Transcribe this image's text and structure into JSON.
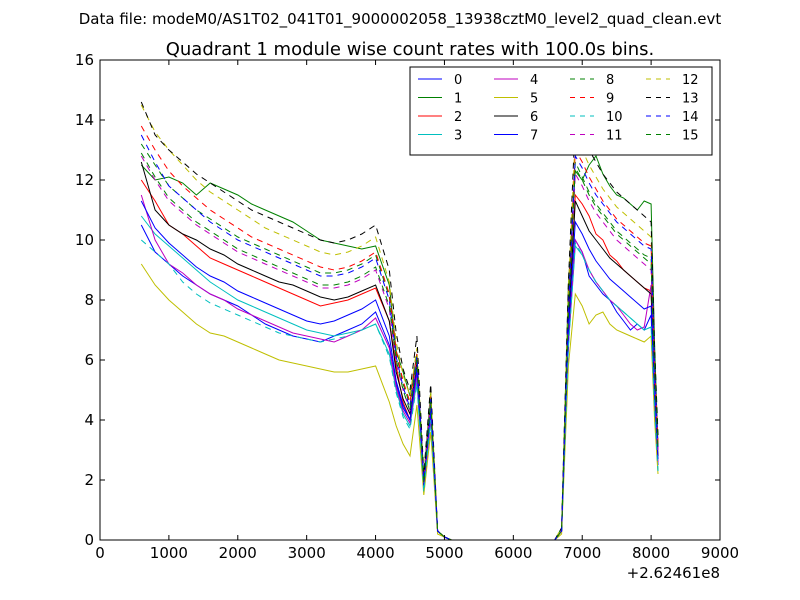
{
  "figure": {
    "suptitle": "Data file: modeM0/AS1T02_041T01_9000002058_13938cztM0_level2_quad_clean.evt"
  },
  "chart_data": {
    "type": "line",
    "title": "Quadrant 1 module wise count rates with 100.0s bins.",
    "xlabel": "",
    "ylabel": "",
    "x_offset_label": "+2.62461e8",
    "xlim": [
      0,
      9000
    ],
    "ylim": [
      0,
      16
    ],
    "xticks": [
      0,
      1000,
      2000,
      3000,
      4000,
      5000,
      6000,
      7000,
      8000,
      9000
    ],
    "yticks": [
      0,
      2,
      4,
      6,
      8,
      10,
      12,
      14,
      16
    ],
    "xtick_labels": [
      "0",
      "1000",
      "2000",
      "3000",
      "4000",
      "5000",
      "6000",
      "7000",
      "8000",
      "9000"
    ],
    "ytick_labels": [
      "0",
      "2",
      "4",
      "6",
      "8",
      "10",
      "12",
      "14",
      "16"
    ],
    "grid": false,
    "legend_placement": "upper right",
    "legend_columns": 4,
    "x": [
      600,
      800,
      1000,
      1200,
      1400,
      1600,
      1800,
      2000,
      2200,
      2400,
      2600,
      2800,
      3000,
      3200,
      3400,
      3600,
      3800,
      4000,
      4200,
      4300,
      4400,
      4500,
      4600,
      4700,
      4800,
      4900,
      5000,
      5100,
      5200,
      5400,
      5600,
      5800,
      6000,
      6200,
      6400,
      6600,
      6700,
      6800,
      6900,
      7000,
      7100,
      7200,
      7300,
      7400,
      7500,
      7600,
      7700,
      7800,
      7900,
      8000,
      8050,
      8100
    ],
    "series": [
      {
        "name": "0",
        "color": "#0000ff",
        "dash": "solid",
        "values": [
          10.5,
          9.6,
          9.2,
          8.8,
          8.5,
          8.2,
          8.0,
          7.8,
          7.5,
          7.2,
          7.0,
          6.8,
          6.7,
          6.6,
          6.8,
          7.0,
          7.2,
          7.6,
          6.5,
          5.2,
          4.4,
          4.0,
          5.6,
          1.8,
          4.2,
          0.3,
          0.1,
          0,
          0,
          0,
          0,
          0,
          0,
          0,
          0,
          0,
          0.3,
          6.5,
          10.0,
          9.6,
          8.8,
          8.5,
          8.2,
          8.0,
          7.6,
          7.3,
          7.0,
          7.2,
          7.0,
          7.5,
          4.5,
          2.5
        ]
      },
      {
        "name": "1",
        "color": "#008000",
        "dash": "solid",
        "values": [
          12.5,
          12.0,
          12.1,
          11.9,
          11.5,
          11.9,
          11.7,
          11.5,
          11.2,
          11.0,
          10.8,
          10.6,
          10.3,
          10.0,
          9.9,
          9.8,
          9.7,
          9.8,
          8.5,
          6.3,
          5.6,
          4.8,
          6.2,
          2.1,
          4.9,
          0.3,
          0.1,
          0,
          0,
          0,
          0,
          0,
          0,
          0,
          0,
          0,
          0.4,
          8.5,
          12.3,
          12.0,
          12.5,
          12.8,
          12.2,
          11.8,
          11.5,
          11.4,
          11.2,
          11.0,
          11.3,
          11.2,
          6.5,
          3.1
        ]
      },
      {
        "name": "2",
        "color": "#ff0000",
        "dash": "solid",
        "values": [
          12.0,
          11.3,
          10.5,
          10.2,
          9.8,
          9.4,
          9.2,
          9.0,
          8.8,
          8.6,
          8.4,
          8.2,
          8.0,
          7.8,
          7.9,
          8.0,
          8.2,
          8.4,
          7.3,
          5.8,
          4.6,
          4.0,
          5.8,
          1.9,
          4.5,
          0.3,
          0.1,
          0,
          0,
          0,
          0,
          0,
          0,
          0,
          0,
          0,
          0.3,
          7.3,
          11.5,
          11.2,
          10.8,
          10.2,
          10.0,
          9.5,
          9.3,
          9.0,
          8.8,
          8.6,
          8.4,
          8.3,
          5.2,
          3.0
        ]
      },
      {
        "name": "3",
        "color": "#00bfbf",
        "dash": "solid",
        "values": [
          10.8,
          10.2,
          9.8,
          9.4,
          9.0,
          8.6,
          8.3,
          8.0,
          7.8,
          7.6,
          7.4,
          7.2,
          7.0,
          6.9,
          6.8,
          6.9,
          7.0,
          7.2,
          6.2,
          5.0,
          4.2,
          3.8,
          5.3,
          1.7,
          4.0,
          0.3,
          0.1,
          0,
          0,
          0,
          0,
          0,
          0,
          0,
          0,
          0,
          0.3,
          6.5,
          9.8,
          9.5,
          9.0,
          8.6,
          8.3,
          8.0,
          7.8,
          7.6,
          7.4,
          7.2,
          7.0,
          7.1,
          4.4,
          2.3
        ]
      },
      {
        "name": "4",
        "color": "#bf00bf",
        "dash": "solid",
        "values": [
          11.5,
          10.0,
          9.2,
          8.9,
          8.5,
          8.2,
          8.0,
          7.7,
          7.5,
          7.3,
          7.1,
          6.9,
          6.8,
          6.7,
          6.6,
          6.8,
          7.0,
          7.4,
          6.4,
          5.1,
          4.3,
          3.9,
          5.5,
          1.7,
          4.1,
          0.3,
          0.1,
          0,
          0,
          0,
          0,
          0,
          0,
          0,
          0,
          0,
          0.3,
          6.6,
          10.0,
          9.6,
          9.0,
          8.6,
          8.3,
          8.0,
          7.8,
          7.5,
          7.2,
          7.0,
          7.1,
          8.5,
          4.8,
          2.6
        ]
      },
      {
        "name": "5",
        "color": "#bfbf00",
        "dash": "solid",
        "values": [
          9.2,
          8.5,
          8.0,
          7.6,
          7.2,
          6.9,
          6.8,
          6.6,
          6.4,
          6.2,
          6.0,
          5.9,
          5.8,
          5.7,
          5.6,
          5.6,
          5.7,
          5.8,
          4.6,
          3.8,
          3.2,
          2.8,
          4.5,
          1.5,
          3.6,
          0.2,
          0.1,
          0,
          0,
          0,
          0,
          0,
          0,
          0,
          0,
          0,
          0.2,
          5.8,
          8.2,
          7.8,
          7.2,
          7.5,
          7.6,
          7.2,
          7.0,
          6.9,
          6.8,
          6.7,
          6.6,
          6.8,
          4.0,
          2.2
        ]
      },
      {
        "name": "6",
        "color": "#000000",
        "dash": "solid",
        "values": [
          12.6,
          11.0,
          10.5,
          10.2,
          10.0,
          9.7,
          9.5,
          9.2,
          9.0,
          8.8,
          8.6,
          8.5,
          8.3,
          8.1,
          8.0,
          8.1,
          8.3,
          8.5,
          7.3,
          5.6,
          4.7,
          4.2,
          5.9,
          1.9,
          4.6,
          0.3,
          0.1,
          0,
          0,
          0,
          0,
          0,
          0,
          0,
          0,
          0,
          0.3,
          7.2,
          11.3,
          10.8,
          10.3,
          10.0,
          9.7,
          9.4,
          9.2,
          9.0,
          8.8,
          8.6,
          8.4,
          8.2,
          5.1,
          2.8
        ]
      },
      {
        "name": "7",
        "color": "#0000ff",
        "dash": "solid",
        "values": [
          11.3,
          10.4,
          9.9,
          9.5,
          9.1,
          8.8,
          8.6,
          8.3,
          8.1,
          7.9,
          7.7,
          7.5,
          7.3,
          7.2,
          7.3,
          7.5,
          7.7,
          8.0,
          6.8,
          5.3,
          4.5,
          4.0,
          5.7,
          1.8,
          4.3,
          0.3,
          0.1,
          0,
          0,
          0,
          0,
          0,
          0,
          0,
          0,
          0,
          0.3,
          6.9,
          10.6,
          10.2,
          9.7,
          9.3,
          9.0,
          8.7,
          8.5,
          8.3,
          8.1,
          7.9,
          7.7,
          7.8,
          4.8,
          2.7
        ]
      },
      {
        "name": "8",
        "color": "#008000",
        "dash": "dashed",
        "values": [
          13.2,
          12.5,
          11.8,
          11.4,
          11.0,
          10.7,
          10.4,
          10.1,
          9.9,
          9.7,
          9.5,
          9.3,
          9.1,
          8.9,
          8.9,
          9.0,
          9.2,
          9.5,
          8.1,
          6.2,
          5.2,
          4.5,
          6.1,
          2.0,
          4.7,
          0.3,
          0.1,
          0,
          0,
          0,
          0,
          0,
          0,
          0,
          0,
          0,
          0.3,
          7.8,
          12.6,
          12.1,
          11.6,
          11.2,
          10.9,
          10.6,
          10.3,
          10.1,
          9.9,
          9.7,
          9.5,
          9.4,
          5.7,
          3.1
        ]
      },
      {
        "name": "9",
        "color": "#ff0000",
        "dash": "dashed",
        "values": [
          13.8,
          13.0,
          12.3,
          11.8,
          11.4,
          11.0,
          10.7,
          10.4,
          10.1,
          9.9,
          9.7,
          9.5,
          9.3,
          9.1,
          9.0,
          9.1,
          9.3,
          9.6,
          8.2,
          6.3,
          5.3,
          4.6,
          6.2,
          2.0,
          4.8,
          0.3,
          0.1,
          0,
          0,
          0,
          0,
          0,
          0,
          0,
          0,
          0,
          0.3,
          8.0,
          13.0,
          12.6,
          12.1,
          11.7,
          11.3,
          11.0,
          10.7,
          10.5,
          10.3,
          10.1,
          9.9,
          9.8,
          5.9,
          3.2
        ]
      },
      {
        "name": "10",
        "color": "#00bfbf",
        "dash": "dashed",
        "values": [
          10.0,
          9.6,
          9.2,
          8.6,
          8.2,
          7.9,
          7.7,
          7.5,
          7.3,
          7.1,
          6.9,
          6.8,
          6.7,
          6.6,
          6.7,
          6.8,
          7.0,
          7.2,
          6.1,
          4.9,
          4.1,
          3.7,
          5.2,
          1.6,
          4.0,
          0.3,
          0.1,
          0,
          0,
          0,
          0,
          0,
          0,
          0,
          0,
          0,
          0.3,
          6.4,
          9.9,
          9.5,
          9.0,
          8.6,
          8.3,
          8.0,
          7.8,
          7.6,
          7.4,
          7.2,
          7.0,
          7.1,
          4.3,
          2.3
        ]
      },
      {
        "name": "11",
        "color": "#bf00bf",
        "dash": "dashed",
        "values": [
          12.8,
          12.0,
          11.3,
          10.9,
          10.5,
          10.2,
          9.9,
          9.6,
          9.4,
          9.2,
          9.0,
          8.8,
          8.6,
          8.4,
          8.4,
          8.5,
          8.7,
          9.0,
          7.7,
          5.9,
          5.0,
          4.3,
          6.0,
          1.9,
          4.6,
          0.3,
          0.1,
          0,
          0,
          0,
          0,
          0,
          0,
          0,
          0,
          0,
          0.3,
          7.5,
          12.2,
          11.8,
          11.3,
          10.9,
          10.6,
          10.3,
          10.0,
          9.8,
          9.6,
          9.4,
          9.2,
          9.0,
          5.5,
          3.0
        ]
      },
      {
        "name": "12",
        "color": "#bfbf00",
        "dash": "dashed",
        "values": [
          14.5,
          13.6,
          13.0,
          12.5,
          12.0,
          11.6,
          11.3,
          11.0,
          10.7,
          10.4,
          10.2,
          10.0,
          9.8,
          9.6,
          9.5,
          9.6,
          9.8,
          10.1,
          8.6,
          6.6,
          5.5,
          4.8,
          6.4,
          2.1,
          5.0,
          0.3,
          0.1,
          0,
          0,
          0,
          0,
          0,
          0,
          0,
          0,
          0,
          0.4,
          8.3,
          13.5,
          13.0,
          12.5,
          12.1,
          11.7,
          11.4,
          11.1,
          10.9,
          10.7,
          10.5,
          10.3,
          10.1,
          6.1,
          3.3
        ]
      },
      {
        "name": "13",
        "color": "#000000",
        "dash": "dashed",
        "values": [
          14.6,
          13.5,
          13.0,
          12.6,
          12.2,
          11.9,
          11.6,
          11.3,
          11.0,
          10.8,
          10.6,
          10.4,
          10.2,
          10.0,
          9.9,
          10.0,
          10.2,
          10.5,
          9.0,
          6.9,
          5.7,
          5.0,
          6.8,
          2.2,
          5.2,
          0.3,
          0.1,
          0,
          0,
          0,
          0,
          0,
          0,
          0,
          0,
          0,
          0.4,
          8.6,
          14.0,
          13.5,
          13.0,
          12.6,
          12.2,
          11.9,
          11.6,
          11.4,
          11.2,
          11.0,
          10.8,
          10.6,
          6.4,
          3.5
        ]
      },
      {
        "name": "14",
        "color": "#0000ff",
        "dash": "dashed",
        "values": [
          13.5,
          12.6,
          11.8,
          11.4,
          11.0,
          10.6,
          10.3,
          10.0,
          9.8,
          9.6,
          9.4,
          9.2,
          9.0,
          8.8,
          8.8,
          8.9,
          9.1,
          9.4,
          8.0,
          6.1,
          5.1,
          4.4,
          6.1,
          2.0,
          4.7,
          0.3,
          0.1,
          0,
          0,
          0,
          0,
          0,
          0,
          0,
          0,
          0,
          0.3,
          7.7,
          12.8,
          12.4,
          11.9,
          11.5,
          11.2,
          10.9,
          10.6,
          10.4,
          10.2,
          10.0,
          9.8,
          9.7,
          5.8,
          3.1
        ]
      },
      {
        "name": "15",
        "color": "#008000",
        "dash": "dashed",
        "values": [
          12.9,
          12.1,
          11.4,
          11.0,
          10.6,
          10.3,
          10.0,
          9.7,
          9.5,
          9.3,
          9.1,
          8.9,
          8.7,
          8.5,
          8.5,
          8.6,
          8.8,
          9.1,
          7.8,
          6.0,
          5.0,
          4.3,
          6.0,
          1.9,
          4.6,
          0.3,
          0.1,
          0,
          0,
          0,
          0,
          0,
          0,
          0,
          0,
          0,
          0.3,
          7.6,
          12.4,
          12.0,
          11.5,
          11.1,
          10.8,
          10.5,
          10.2,
          10.0,
          9.8,
          9.6,
          9.4,
          9.2,
          5.6,
          3.0
        ]
      }
    ]
  }
}
